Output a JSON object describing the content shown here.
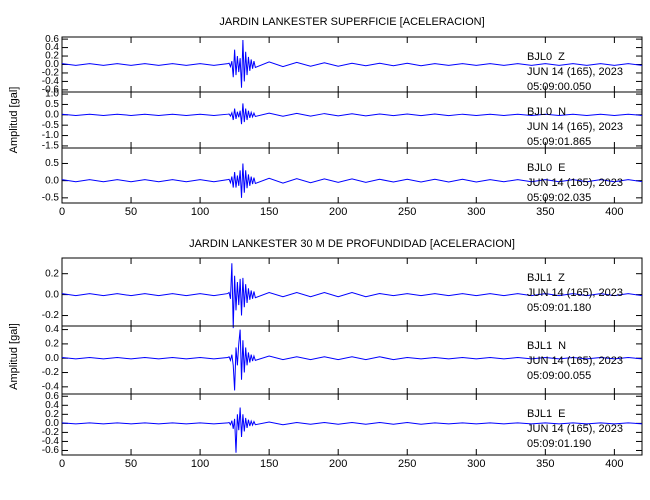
{
  "chart_data": [
    {
      "type": "line",
      "title": "JARDIN LANKESTER SUPERFICIE [ACELERACION]",
      "ylabel": "Amplitud [gal]",
      "color": "#0000ff",
      "xlim": [
        0,
        420
      ],
      "xticks": [
        0,
        50,
        100,
        150,
        200,
        250,
        300,
        350,
        400
      ],
      "x": [
        0,
        10,
        20,
        30,
        40,
        50,
        60,
        70,
        80,
        90,
        100,
        110,
        120,
        121,
        122,
        123,
        124,
        125,
        126,
        127,
        128,
        129,
        130,
        131,
        132,
        133,
        134,
        135,
        136,
        137,
        138,
        139,
        140,
        150,
        160,
        170,
        180,
        190,
        200,
        210,
        220,
        230,
        240,
        250,
        260,
        270,
        280,
        290,
        300,
        310,
        320,
        330,
        340,
        350,
        360,
        370,
        380,
        390,
        400,
        410,
        420
      ],
      "panels": [
        {
          "station": "BJL0  Z",
          "date": "JUN 14 (165), 2023",
          "time": "05:09:00.050",
          "ylim": [
            -0.65,
            0.65
          ],
          "yticks": [
            {
              "value": 0.6,
              "label": "0.6"
            },
            {
              "value": 0.4,
              "label": "0.4"
            },
            {
              "value": 0.2,
              "label": "0.2"
            },
            {
              "value": 0,
              "label": "0.0"
            },
            {
              "value": -0.2,
              "label": "-0.2"
            },
            {
              "value": -0.4,
              "label": "-0.4"
            },
            {
              "value": -0.6,
              "label": "-0.6"
            }
          ],
          "values": [
            0.02,
            -0.02,
            0.02,
            -0.02,
            0.02,
            -0.02,
            0.02,
            -0.02,
            0.02,
            -0.02,
            0.02,
            -0.02,
            0.02,
            0.03,
            -0.05,
            0.08,
            -0.3,
            0.35,
            -0.25,
            0.2,
            -0.18,
            0.15,
            -0.55,
            0.58,
            -0.4,
            0.3,
            -0.25,
            0.18,
            -0.15,
            0.12,
            -0.1,
            0.08,
            -0.07,
            0.06,
            -0.05,
            0.05,
            -0.04,
            0.04,
            -0.04,
            0.03,
            -0.03,
            0.03,
            -0.03,
            0.03,
            -0.03,
            0.02,
            -0.02,
            0.02,
            -0.02,
            0.02,
            -0.02,
            0.02,
            -0.02,
            0.02,
            -0.02,
            0.02,
            -0.02,
            0.02,
            -0.02,
            0.02,
            -0.02
          ]
        },
        {
          "station": "BJL0  N",
          "date": "JUN 14 (165), 2023",
          "time": "05:09:01.865",
          "ylim": [
            -1.6,
            1.1
          ],
          "yticks": [
            {
              "value": 1,
              "label": "1.0"
            },
            {
              "value": 0.5,
              "label": "0.5"
            },
            {
              "value": 0,
              "label": "0.0"
            },
            {
              "value": -0.5,
              "label": "-0.5"
            },
            {
              "value": -1,
              "label": "-1.0"
            },
            {
              "value": -1.5,
              "label": "-1.5"
            }
          ],
          "values": [
            0.03,
            -0.03,
            0.03,
            -0.03,
            0.03,
            -0.03,
            0.03,
            -0.03,
            0.03,
            -0.03,
            0.03,
            -0.03,
            0.03,
            0.04,
            -0.06,
            0.1,
            -0.25,
            0.3,
            -0.2,
            0.15,
            -0.12,
            0.2,
            -0.45,
            0.55,
            -0.35,
            0.3,
            -0.25,
            0.2,
            -0.15,
            0.12,
            -0.1,
            0.08,
            -0.08,
            0.08,
            -0.07,
            0.07,
            -0.06,
            0.06,
            -0.05,
            0.05,
            -0.05,
            0.04,
            -0.04,
            0.04,
            -0.04,
            0.04,
            -0.04,
            0.03,
            -0.03,
            0.03,
            -0.03,
            0.03,
            -0.03,
            0.03,
            -0.03,
            0.03,
            -0.03,
            0.03,
            -0.03,
            0.03,
            -0.03
          ]
        },
        {
          "station": "BJL0  E",
          "date": "JUN 14 (165), 2023",
          "time": "05:09:02.035",
          "ylim": [
            -0.65,
            0.95
          ],
          "yticks": [
            {
              "value": 0.5,
              "label": "0.5"
            },
            {
              "value": 0,
              "label": "0.0"
            },
            {
              "value": -0.5,
              "label": "-0.5"
            }
          ],
          "values": [
            0.03,
            -0.03,
            0.03,
            -0.03,
            0.03,
            -0.03,
            0.03,
            -0.03,
            0.03,
            -0.03,
            0.03,
            -0.03,
            0.03,
            0.04,
            -0.06,
            0.12,
            -0.2,
            0.25,
            -0.2,
            0.15,
            -0.15,
            0.3,
            -0.5,
            0.5,
            -0.35,
            0.3,
            -0.22,
            0.18,
            -0.15,
            0.12,
            -0.1,
            0.09,
            -0.08,
            0.07,
            -0.07,
            0.06,
            -0.06,
            0.05,
            -0.05,
            0.05,
            -0.05,
            0.04,
            -0.04,
            0.04,
            -0.04,
            0.04,
            -0.04,
            0.04,
            -0.04,
            0.03,
            -0.03,
            0.03,
            -0.03,
            0.03,
            -0.03,
            0.03,
            -0.03,
            0.03,
            -0.03,
            0.03,
            -0.03
          ]
        }
      ]
    },
    {
      "type": "line",
      "title": "JARDIN LANKESTER 30 M DE PROFUNDIDAD [ACELERACION]",
      "ylabel": "Amplitud [gal]",
      "color": "#0000ff",
      "xlim": [
        0,
        420
      ],
      "xticks": [
        0,
        50,
        100,
        150,
        200,
        250,
        300,
        350,
        400
      ],
      "x": [
        0,
        10,
        20,
        30,
        40,
        50,
        60,
        70,
        80,
        90,
        100,
        110,
        120,
        121,
        122,
        123,
        124,
        125,
        126,
        127,
        128,
        129,
        130,
        131,
        132,
        133,
        134,
        135,
        136,
        137,
        138,
        139,
        140,
        150,
        160,
        170,
        180,
        190,
        200,
        210,
        220,
        230,
        240,
        250,
        260,
        270,
        280,
        290,
        300,
        310,
        320,
        330,
        340,
        350,
        360,
        370,
        380,
        390,
        400,
        410,
        420
      ],
      "panels": [
        {
          "station": "BJL1  Z",
          "date": "JUN 14 (165), 2023",
          "time": "05:09:01.180",
          "ylim": [
            -0.3,
            0.35
          ],
          "yticks": [
            {
              "value": 0.2,
              "label": "0.2"
            },
            {
              "value": 0,
              "label": "0.0"
            },
            {
              "value": -0.2,
              "label": "-0.2"
            }
          ],
          "values": [
            0.01,
            -0.01,
            0.01,
            -0.01,
            0.01,
            -0.01,
            0.01,
            -0.01,
            0.01,
            -0.01,
            0.01,
            -0.01,
            0.01,
            0.02,
            -0.04,
            0.3,
            -0.32,
            0.18,
            -0.15,
            0.12,
            -0.1,
            0.15,
            -0.2,
            0.16,
            -0.12,
            0.1,
            -0.08,
            0.06,
            -0.05,
            0.04,
            -0.04,
            0.03,
            -0.03,
            0.02,
            -0.02,
            0.02,
            -0.02,
            0.02,
            -0.02,
            0.02,
            -0.02,
            0.01,
            -0.01,
            0.01,
            -0.01,
            0.01,
            -0.01,
            0.01,
            -0.01,
            0.01,
            -0.01,
            0.01,
            -0.01,
            0.01,
            -0.01,
            0.01,
            -0.01,
            0.01,
            -0.01,
            0.01,
            -0.01
          ]
        },
        {
          "station": "BJL1  N",
          "date": "JUN 14 (165), 2023",
          "time": "05:09:00.055",
          "ylim": [
            -0.5,
            0.45
          ],
          "yticks": [
            {
              "value": 0.4,
              "label": "0.4"
            },
            {
              "value": 0.2,
              "label": "0.2"
            },
            {
              "value": 0,
              "label": "0.0"
            },
            {
              "value": -0.2,
              "label": "-0.2"
            },
            {
              "value": -0.4,
              "label": "-0.4"
            }
          ],
          "values": [
            0.01,
            -0.01,
            0.01,
            -0.01,
            0.01,
            -0.01,
            0.01,
            -0.01,
            0.01,
            -0.01,
            0.01,
            -0.01,
            0.01,
            0.02,
            -0.03,
            0.05,
            -0.1,
            -0.45,
            0.15,
            -0.1,
            0.2,
            0.4,
            -0.3,
            0.25,
            -0.2,
            0.15,
            -0.1,
            0.08,
            -0.06,
            0.05,
            -0.04,
            0.03,
            -0.03,
            0.03,
            -0.02,
            0.02,
            -0.02,
            0.02,
            -0.02,
            0.02,
            -0.02,
            0.02,
            -0.02,
            0.01,
            -0.01,
            0.01,
            -0.01,
            0.01,
            -0.01,
            0.01,
            -0.01,
            0.01,
            -0.01,
            0.01,
            -0.01,
            0.01,
            -0.01,
            0.01,
            -0.01,
            0.01,
            -0.01
          ]
        },
        {
          "station": "BJL1  E",
          "date": "JUN 14 (165), 2023",
          "time": "05:09:01.190",
          "ylim": [
            -0.7,
            0.65
          ],
          "yticks": [
            {
              "value": 0.6,
              "label": "0.6"
            },
            {
              "value": 0.4,
              "label": "0.4"
            },
            {
              "value": 0.2,
              "label": "0.2"
            },
            {
              "value": 0,
              "label": "0.0"
            },
            {
              "value": -0.2,
              "label": "-0.2"
            },
            {
              "value": -0.4,
              "label": "-0.4"
            },
            {
              "value": -0.6,
              "label": "-0.6"
            }
          ],
          "values": [
            0.01,
            -0.01,
            0.01,
            -0.01,
            0.01,
            -0.01,
            0.01,
            -0.01,
            0.01,
            -0.01,
            0.01,
            -0.01,
            0.01,
            0.02,
            -0.03,
            0.06,
            -0.12,
            0.1,
            -0.65,
            0.2,
            -0.15,
            0.35,
            -0.3,
            0.2,
            -0.18,
            0.12,
            -0.1,
            0.08,
            -0.06,
            0.05,
            -0.04,
            0.04,
            -0.03,
            0.03,
            -0.03,
            0.02,
            -0.02,
            0.02,
            -0.02,
            0.02,
            -0.02,
            0.02,
            -0.02,
            0.02,
            -0.02,
            0.01,
            -0.01,
            0.01,
            -0.01,
            0.01,
            -0.01,
            0.01,
            -0.01,
            0.01,
            -0.01,
            0.01,
            -0.01,
            0.01,
            -0.01,
            0.01,
            -0.01
          ]
        }
      ]
    }
  ]
}
